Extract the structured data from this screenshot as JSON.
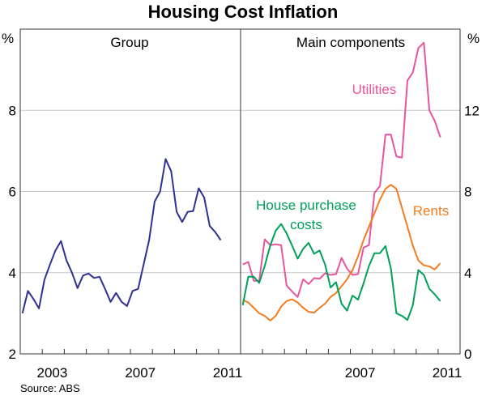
{
  "chart_data": [
    {
      "type": "line",
      "title": "Housing Cost Inflation",
      "panel_title": "Group",
      "yunit": "%",
      "ylim": [
        2,
        10
      ],
      "yticks": [
        2,
        4,
        6,
        8
      ],
      "xlim": [
        2002,
        2012
      ],
      "xtick_labels": [
        "2003",
        "2007",
        "2011"
      ],
      "grid": true,
      "x": [
        "2002Q1",
        "2002Q2",
        "2002Q3",
        "2002Q4",
        "2003Q1",
        "2003Q2",
        "2003Q3",
        "2003Q4",
        "2004Q1",
        "2004Q2",
        "2004Q3",
        "2004Q4",
        "2005Q1",
        "2005Q2",
        "2005Q3",
        "2005Q4",
        "2006Q1",
        "2006Q2",
        "2006Q3",
        "2006Q4",
        "2007Q1",
        "2007Q2",
        "2007Q3",
        "2007Q4",
        "2008Q1",
        "2008Q2",
        "2008Q3",
        "2008Q4",
        "2009Q1",
        "2009Q2",
        "2009Q3",
        "2009Q4",
        "2010Q1",
        "2010Q2",
        "2010Q3",
        "2010Q4",
        "2011Q1"
      ],
      "series": [
        {
          "color": "#2e3192",
          "values": [
            3.0,
            3.55,
            3.35,
            3.12,
            3.83,
            4.2,
            4.55,
            4.78,
            4.3,
            4.0,
            3.62,
            3.93,
            3.98,
            3.87,
            3.9,
            3.6,
            3.28,
            3.5,
            3.28,
            3.18,
            3.55,
            3.6,
            4.2,
            4.8,
            5.75,
            6.0,
            6.8,
            6.5,
            5.5,
            5.25,
            5.5,
            5.52,
            6.08,
            5.85,
            5.15,
            5.0,
            4.8
          ]
        }
      ]
    },
    {
      "type": "line",
      "panel_title": "Main components",
      "yunit": "%",
      "ylim": [
        0,
        16
      ],
      "yticks": [
        0,
        4,
        8,
        12
      ],
      "xlim": [
        2002,
        2012
      ],
      "xtick_labels": [
        "2007",
        "2011"
      ],
      "grid": true,
      "x": [
        "2002Q1",
        "2002Q2",
        "2002Q3",
        "2002Q4",
        "2003Q1",
        "2003Q2",
        "2003Q3",
        "2003Q4",
        "2004Q1",
        "2004Q2",
        "2004Q3",
        "2004Q4",
        "2005Q1",
        "2005Q2",
        "2005Q3",
        "2005Q4",
        "2006Q1",
        "2006Q2",
        "2006Q3",
        "2006Q4",
        "2007Q1",
        "2007Q2",
        "2007Q3",
        "2007Q4",
        "2008Q1",
        "2008Q2",
        "2008Q3",
        "2008Q4",
        "2009Q1",
        "2009Q2",
        "2009Q3",
        "2009Q4",
        "2010Q1",
        "2010Q2",
        "2010Q3",
        "2010Q4",
        "2011Q1"
      ],
      "series": [
        {
          "name": "Utilities",
          "color": "#e8559f",
          "values": [
            4.4,
            4.53,
            3.6,
            3.6,
            5.64,
            5.36,
            5.4,
            5.36,
            3.36,
            3.07,
            2.8,
            3.67,
            3.44,
            3.73,
            3.7,
            3.97,
            3.89,
            3.93,
            4.73,
            4.2,
            3.89,
            3.93,
            5.23,
            5.36,
            7.93,
            8.27,
            10.8,
            10.8,
            9.73,
            9.67,
            13.47,
            13.87,
            15.07,
            15.33,
            12.0,
            11.47,
            10.67
          ]
        },
        {
          "name": "Rents",
          "color": "#f47c20",
          "values": [
            2.67,
            2.53,
            2.27,
            2.0,
            1.87,
            1.64,
            1.87,
            2.33,
            2.6,
            2.69,
            2.53,
            2.27,
            2.07,
            2.03,
            2.27,
            2.47,
            2.8,
            3.0,
            3.33,
            3.67,
            4.13,
            4.8,
            5.6,
            6.27,
            6.93,
            7.6,
            8.13,
            8.33,
            8.13,
            7.2,
            6.27,
            5.33,
            4.6,
            4.36,
            4.31,
            4.16,
            4.47
          ]
        },
        {
          "name": "House purchase costs",
          "name_lines": [
            "House purchase",
            "costs"
          ],
          "color": "#00a05a",
          "values": [
            2.4,
            3.8,
            3.8,
            3.49,
            4.33,
            5.33,
            6.07,
            6.4,
            5.93,
            5.33,
            4.69,
            5.17,
            5.47,
            4.93,
            5.09,
            4.4,
            3.27,
            3.53,
            2.47,
            2.13,
            2.87,
            2.67,
            3.47,
            4.33,
            4.96,
            4.96,
            5.31,
            4.2,
            2.0,
            1.87,
            1.67,
            2.4,
            4.13,
            3.89,
            3.2,
            2.93,
            2.6
          ]
        }
      ]
    }
  ],
  "source": "Source: ABS"
}
